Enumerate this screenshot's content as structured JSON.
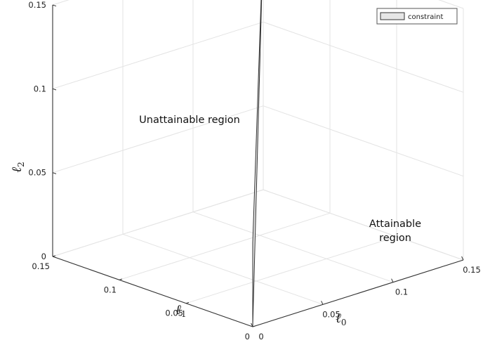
{
  "chart_data": {
    "type": "3d-surface",
    "title": "",
    "axes": {
      "x": {
        "label": "ℓ",
        "label_sub": "0",
        "range": [
          0,
          0.15
        ],
        "ticks": [
          "0",
          "0.05",
          "0.1",
          "0.15"
        ]
      },
      "y": {
        "label": "ℓ",
        "label_sub": "1",
        "range": [
          0,
          0.15
        ],
        "ticks": [
          "0",
          "0.05",
          "0.1",
          "0.15"
        ]
      },
      "z": {
        "label": "ℓ",
        "label_sub": "2",
        "range": [
          0,
          0.15
        ],
        "ticks": [
          "0",
          "0.05",
          "0.1",
          "0.15"
        ]
      }
    },
    "grid": true,
    "legend": {
      "position": "top-right",
      "entries": [
        "constraint"
      ]
    },
    "series": [
      {
        "name": "constraint",
        "kind": "filled-triangle",
        "fill": "#e6e6e6",
        "edge": "#333333",
        "vertices": [
          {
            "x": 0,
            "y": 0,
            "z": 0
          },
          {
            "x": 0,
            "y": 0,
            "z": 0.05
          },
          {
            "x": 0.15,
            "y": 0.15,
            "z": 0.15
          }
        ]
      }
    ],
    "annotations": [
      {
        "text": "Unattainable region"
      },
      {
        "text": "Attainable region",
        "lines": [
          "Attainable",
          "region"
        ]
      }
    ]
  }
}
